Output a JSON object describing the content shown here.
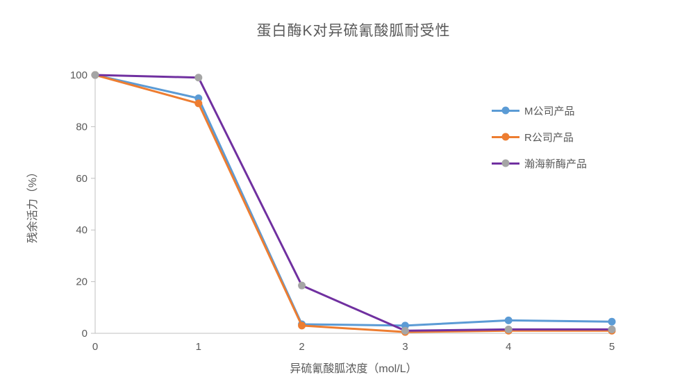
{
  "style": {
    "text_color": "#595959",
    "tick_label_color": "#595959",
    "axis_color": "#BFBFBF",
    "background": "#ffffff"
  },
  "chart_data": {
    "type": "line",
    "title": "蛋白酶K对异硫氰酸胍耐受性",
    "xlabel": "异硫氰酸胍浓度（mol/L）",
    "ylabel": "残余活力（%）",
    "x": [
      0,
      1,
      2,
      3,
      4,
      5
    ],
    "xlim": [
      0,
      5
    ],
    "ylim": [
      0,
      100
    ],
    "xticks": [
      "0",
      "1",
      "2",
      "3",
      "4",
      "5"
    ],
    "yticks": [
      "0",
      "20",
      "40",
      "60",
      "80",
      "100"
    ],
    "grid": false,
    "legend_position": "right",
    "series": [
      {
        "name": "M公司产品",
        "line_color": "#5B9BD5",
        "marker_color": "#5B9BD5",
        "values": [
          100,
          91,
          3.5,
          3,
          5,
          4.5
        ]
      },
      {
        "name": "R公司产品",
        "line_color": "#ED7D31",
        "marker_color": "#ED7D31",
        "values": [
          100,
          89,
          3,
          0.5,
          1,
          1
        ]
      },
      {
        "name": "瀚海新酶产品",
        "line_color": "#7030A0",
        "marker_color": "#A5A5A5",
        "values": [
          100,
          99,
          18.5,
          1,
          1.5,
          1.5
        ]
      }
    ]
  }
}
